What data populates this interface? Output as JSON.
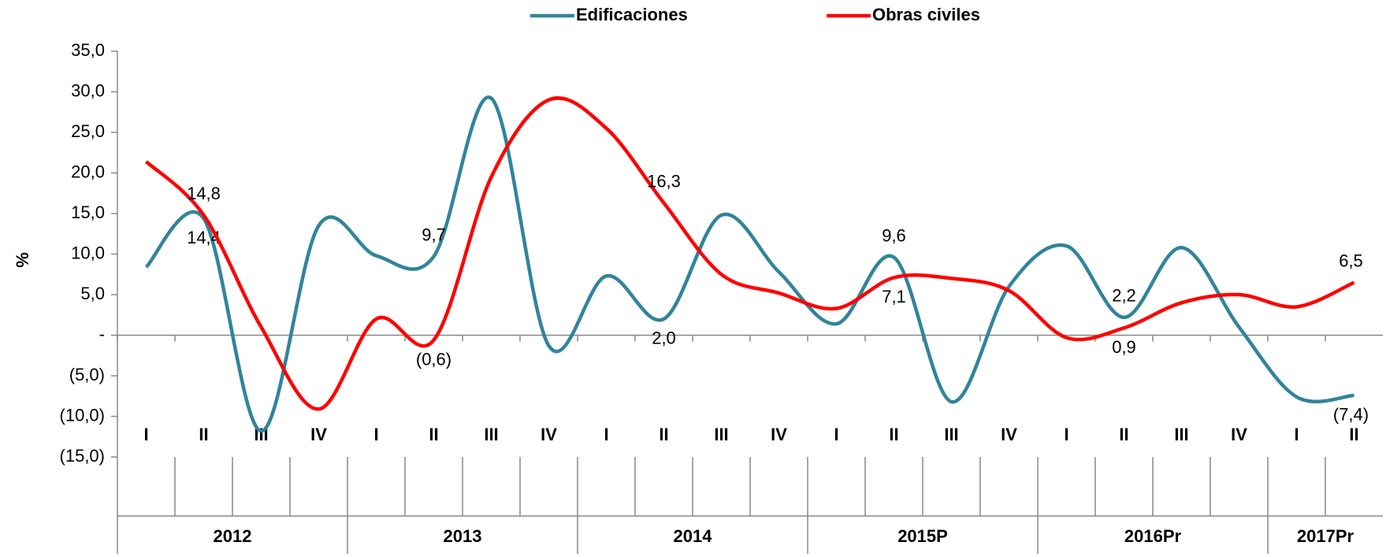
{
  "chart_data": {
    "type": "line",
    "y_label": "%",
    "category_groups": [
      {
        "label": "2012",
        "categories": [
          "I",
          "II",
          "III",
          "IV"
        ]
      },
      {
        "label": "2013",
        "categories": [
          "I",
          "II",
          "III",
          "IV"
        ]
      },
      {
        "label": "2014",
        "categories": [
          "I",
          "II",
          "III",
          "IV"
        ]
      },
      {
        "label": "2015P",
        "categories": [
          "I",
          "II",
          "III",
          "IV"
        ]
      },
      {
        "label": "2016Pr",
        "categories": [
          "I",
          "II",
          "III",
          "IV"
        ]
      },
      {
        "label": "2017Pr",
        "categories": [
          "I",
          "II"
        ]
      }
    ],
    "series": [
      {
        "name": "Edificaciones",
        "color": "#31849b",
        "values": [
          8.4,
          14.4,
          -11.8,
          13.5,
          9.8,
          9.7,
          29.2,
          -1.3,
          7.3,
          2.0,
          14.8,
          7.8,
          1.4,
          9.6,
          -8.2,
          6.0,
          11.0,
          2.2,
          10.8,
          1.0,
          -7.6,
          -7.4
        ],
        "value_labels": [
          null,
          "14,4",
          null,
          null,
          null,
          "9,7",
          null,
          null,
          null,
          "2,0",
          null,
          null,
          null,
          "9,6",
          null,
          null,
          null,
          "2,2",
          null,
          null,
          null,
          "(7,4)"
        ]
      },
      {
        "name": "Obras civiles",
        "color": "#ff0000",
        "values": [
          21.4,
          14.8,
          1.0,
          -9.1,
          2.0,
          -0.6,
          19.5,
          29.0,
          25.5,
          16.3,
          7.5,
          5.2,
          3.3,
          7.1,
          7.0,
          5.5,
          -0.3,
          0.9,
          4.0,
          5.0,
          3.5,
          6.5
        ],
        "value_labels": [
          null,
          "14,8",
          null,
          null,
          null,
          "(0,6)",
          null,
          null,
          null,
          "16,3",
          null,
          null,
          null,
          "7,1",
          null,
          null,
          null,
          "0,9",
          null,
          null,
          null,
          "6,5"
        ]
      }
    ],
    "ylim": [
      -15,
      35
    ],
    "yticks": [
      {
        "value": -15,
        "label": "(15,0)"
      },
      {
        "value": -10,
        "label": "(10,0)"
      },
      {
        "value": -5,
        "label": "(5,0)"
      },
      {
        "value": 0,
        "label": "-"
      },
      {
        "value": 5,
        "label": "5,0"
      },
      {
        "value": 10,
        "label": "10,0"
      },
      {
        "value": 15,
        "label": "15,0"
      },
      {
        "value": 20,
        "label": "20,0"
      },
      {
        "value": 25,
        "label": "25,0"
      },
      {
        "value": 30,
        "label": "30,0"
      },
      {
        "value": 35,
        "label": "35,0"
      }
    ],
    "legend": "top",
    "grid": false
  }
}
